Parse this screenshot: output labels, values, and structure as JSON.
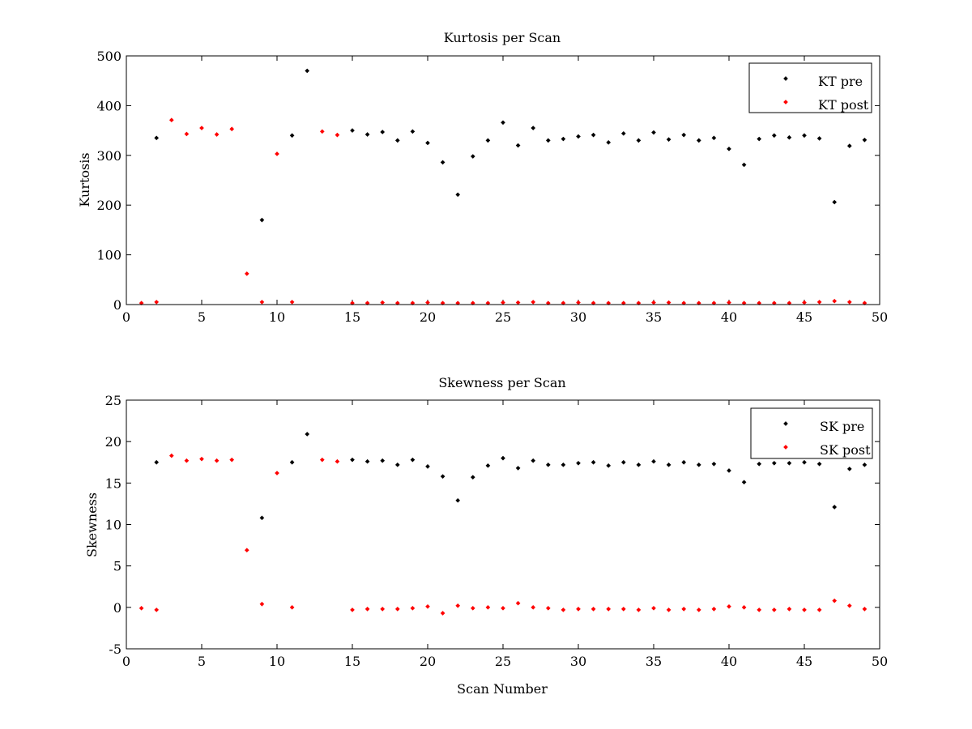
{
  "chart_data": [
    {
      "type": "scatter",
      "title": "Kurtosis per Scan",
      "xlabel": "",
      "ylabel": "Kurtosis",
      "xlim": [
        0,
        50
      ],
      "ylim": [
        0,
        500
      ],
      "xticks": [
        0,
        5,
        10,
        15,
        20,
        25,
        30,
        35,
        40,
        45,
        50
      ],
      "yticks": [
        0,
        100,
        200,
        300,
        400,
        500
      ],
      "grid": false,
      "legend": "top-right",
      "series": [
        {
          "name": "KT pre",
          "color": "#000000",
          "x": [
            2,
            9,
            11,
            12,
            15,
            16,
            17,
            18,
            19,
            20,
            21,
            22,
            23,
            24,
            25,
            26,
            27,
            28,
            29,
            30,
            31,
            32,
            33,
            34,
            35,
            36,
            37,
            38,
            39,
            40,
            41,
            42,
            43,
            44,
            45,
            46,
            47,
            48,
            49
          ],
          "y": [
            335,
            170,
            340,
            470,
            350,
            342,
            347,
            330,
            348,
            325,
            286,
            221,
            298,
            330,
            366,
            320,
            355,
            330,
            333,
            338,
            341,
            326,
            344,
            330,
            346,
            332,
            341,
            330,
            335,
            313,
            281,
            333,
            340,
            336,
            340,
            334,
            206,
            319,
            331
          ]
        },
        {
          "name": "KT post",
          "color": "#ff0000",
          "x": [
            1,
            2,
            3,
            4,
            5,
            6,
            7,
            8,
            9,
            10,
            11,
            13,
            14,
            15,
            16,
            17,
            18,
            19,
            20,
            21,
            22,
            23,
            24,
            25,
            26,
            27,
            28,
            29,
            30,
            31,
            32,
            33,
            34,
            35,
            36,
            37,
            38,
            39,
            40,
            41,
            42,
            43,
            44,
            45,
            46,
            47,
            48,
            49
          ],
          "y": [
            3,
            5,
            371,
            343,
            355,
            342,
            353,
            62,
            5,
            303,
            5,
            348,
            341,
            3,
            3,
            4,
            3,
            3,
            4,
            3,
            3,
            3,
            3,
            4,
            4,
            5,
            3,
            3,
            4,
            3,
            3,
            3,
            3,
            4,
            4,
            3,
            3,
            3,
            4,
            3,
            3,
            3,
            3,
            4,
            5,
            7,
            5,
            3
          ]
        }
      ]
    },
    {
      "type": "scatter",
      "title": "Skewness per Scan",
      "xlabel": "Scan Number",
      "ylabel": "Skewness",
      "xlim": [
        0,
        50
      ],
      "ylim": [
        -5,
        25
      ],
      "xticks": [
        0,
        5,
        10,
        15,
        20,
        25,
        30,
        35,
        40,
        45,
        50
      ],
      "yticks": [
        -5,
        0,
        5,
        10,
        15,
        20,
        25
      ],
      "grid": false,
      "legend": "top-right",
      "series": [
        {
          "name": "SK pre",
          "color": "#000000",
          "x": [
            2,
            9,
            11,
            12,
            15,
            16,
            17,
            18,
            19,
            20,
            21,
            22,
            23,
            24,
            25,
            26,
            27,
            28,
            29,
            30,
            31,
            32,
            33,
            34,
            35,
            36,
            37,
            38,
            39,
            40,
            41,
            42,
            43,
            44,
            45,
            46,
            47,
            48,
            49
          ],
          "y": [
            17.5,
            10.8,
            17.5,
            20.9,
            17.8,
            17.6,
            17.7,
            17.2,
            17.8,
            17.0,
            15.8,
            12.9,
            15.7,
            17.1,
            18.0,
            16.8,
            17.7,
            17.2,
            17.2,
            17.4,
            17.5,
            17.1,
            17.5,
            17.2,
            17.6,
            17.2,
            17.5,
            17.2,
            17.3,
            16.5,
            15.1,
            17.3,
            17.4,
            17.4,
            17.5,
            17.3,
            12.1,
            16.7,
            17.2
          ]
        },
        {
          "name": "SK post",
          "color": "#ff0000",
          "x": [
            1,
            2,
            3,
            4,
            5,
            6,
            7,
            8,
            9,
            10,
            11,
            13,
            14,
            15,
            16,
            17,
            18,
            19,
            20,
            21,
            22,
            23,
            24,
            25,
            26,
            27,
            28,
            29,
            30,
            31,
            32,
            33,
            34,
            35,
            36,
            37,
            38,
            39,
            40,
            41,
            42,
            43,
            44,
            45,
            46,
            47,
            48,
            49
          ],
          "y": [
            -0.1,
            -0.3,
            18.3,
            17.7,
            17.9,
            17.7,
            17.8,
            6.9,
            0.4,
            16.2,
            0.0,
            17.8,
            17.6,
            -0.3,
            -0.2,
            -0.2,
            -0.2,
            -0.1,
            0.1,
            -0.7,
            0.2,
            -0.1,
            0.0,
            -0.1,
            0.5,
            0.0,
            -0.1,
            -0.3,
            -0.2,
            -0.2,
            -0.2,
            -0.2,
            -0.3,
            -0.1,
            -0.3,
            -0.2,
            -0.3,
            -0.2,
            0.1,
            0.0,
            -0.3,
            -0.3,
            -0.2,
            -0.3,
            -0.3,
            0.8,
            0.2,
            -0.2
          ]
        }
      ]
    }
  ]
}
